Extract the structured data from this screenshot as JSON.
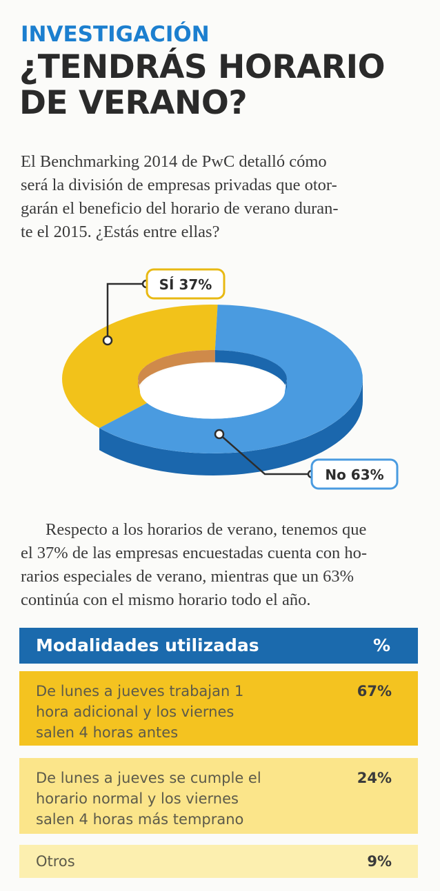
{
  "kicker": "INVESTIGACIÓN",
  "headline": [
    "¿TENDRÁS HORARIO",
    "DE VERANO?"
  ],
  "intro_lines": [
    "El Benchmarking 2014 de PwC detalló cómo",
    "será la división de empresas privadas que otor-",
    "garán el beneficio del horario de verano duran-",
    "te el 2015. ¿Estás entre ellas?"
  ],
  "chart_data": {
    "type": "pie",
    "style": "3d-donut",
    "categories": [
      "Sí",
      "No"
    ],
    "values": [
      37,
      63
    ],
    "labels": [
      "SÍ 37%",
      "No 63%"
    ],
    "colors": [
      "#f2c21a",
      "#4a9be0"
    ],
    "side_colors": [
      "#cf8a4a",
      "#1b67ad"
    ]
  },
  "body_lines": [
    "Respecto a los horarios de verano, tenemos que",
    "el 37% de las empresas encuestadas cuenta con ho-",
    "rarios especiales de verano, mientras que un 63%",
    "continúa con el mismo horario todo el año."
  ],
  "table": {
    "header": {
      "label": "Modalidades utilizadas",
      "pct": "%"
    },
    "rows": [
      {
        "lines": [
          "De lunes a jueves trabajan 1",
          "hora adicional y los viernes",
          "salen 4 horas antes"
        ],
        "pct": "67%",
        "color": "#f4c320"
      },
      {
        "lines": [
          "De lunes a jueves se cumple el",
          "horario normal y los viernes",
          "salen 4 horas más temprano"
        ],
        "pct": "24%",
        "color": "#fbe58a"
      },
      {
        "lines": [
          "Otros"
        ],
        "pct": "9%",
        "color": "#fcefaf"
      }
    ]
  }
}
